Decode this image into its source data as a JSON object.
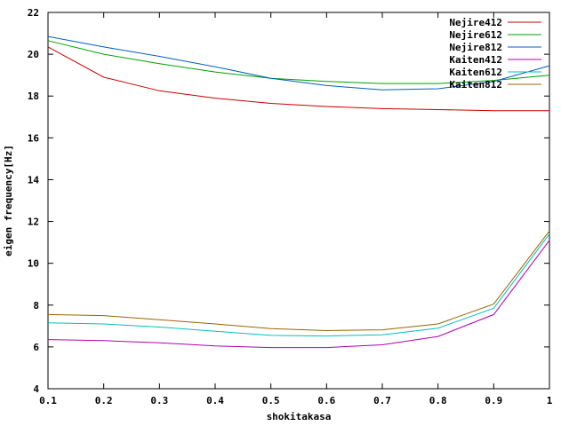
{
  "chart_data": {
    "type": "line",
    "title": "",
    "xlabel": "shokitakasa",
    "ylabel": "eigen frequency[Hz]",
    "xlim": [
      0.1,
      1
    ],
    "ylim": [
      4,
      22
    ],
    "x_ticks": [
      "0.1",
      "0.2",
      "0.3",
      "0.4",
      "0.5",
      "0.6",
      "0.7",
      "0.8",
      "0.9",
      "1"
    ],
    "y_ticks": [
      "4",
      "6",
      "8",
      "10",
      "12",
      "14",
      "16",
      "18",
      "20",
      "22"
    ],
    "x_tick_values": [
      0.1,
      0.2,
      0.3,
      0.4,
      0.5,
      0.6,
      0.7,
      0.8,
      0.9,
      1.0
    ],
    "y_tick_values": [
      4,
      6,
      8,
      10,
      12,
      14,
      16,
      18,
      20,
      22
    ],
    "grid": false,
    "legend_position": "top-right",
    "x": [
      0.1,
      0.2,
      0.3,
      0.4,
      0.5,
      0.6,
      0.7,
      0.8,
      0.9,
      1.0
    ],
    "series": [
      {
        "name": "Nejire412",
        "color": "#cc0000",
        "values": [
          20.35,
          18.9,
          18.25,
          17.9,
          17.65,
          17.5,
          17.4,
          17.35,
          17.3,
          17.3
        ]
      },
      {
        "name": "Nejire612",
        "color": "#00a000",
        "values": [
          20.65,
          20.0,
          19.55,
          19.15,
          18.85,
          18.7,
          18.6,
          18.6,
          18.75,
          19.0
        ]
      },
      {
        "name": "Nejire812",
        "color": "#0060c0",
        "values": [
          20.85,
          20.35,
          19.9,
          19.4,
          18.85,
          18.5,
          18.3,
          18.35,
          18.7,
          19.45
        ]
      },
      {
        "name": "Kaiten412",
        "color": "#b000b0",
        "values": [
          6.35,
          6.3,
          6.2,
          6.05,
          5.97,
          5.97,
          6.1,
          6.5,
          7.55,
          11.1
        ]
      },
      {
        "name": "Kaiten612",
        "color": "#00c0c0",
        "values": [
          7.15,
          7.1,
          6.95,
          6.75,
          6.55,
          6.52,
          6.58,
          6.9,
          7.85,
          11.4
        ]
      },
      {
        "name": "Kaiten812",
        "color": "#996600",
        "values": [
          7.55,
          7.5,
          7.3,
          7.1,
          6.88,
          6.78,
          6.82,
          7.1,
          8.05,
          11.55
        ]
      }
    ]
  }
}
